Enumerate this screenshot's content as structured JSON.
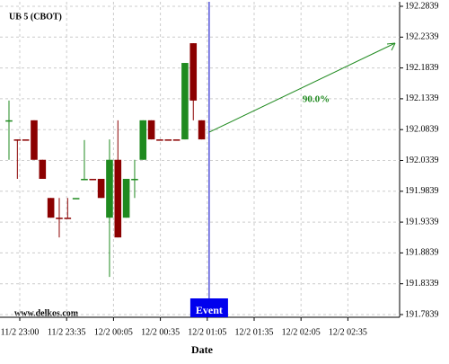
{
  "chart_data": {
    "type": "candlestick",
    "title": "UB 5 (CBOT)",
    "watermark": "www.delkos.com",
    "x_label": "Date",
    "x_labels": [
      "11/2 23:00",
      "11/2 23:35",
      "12/2 00:05",
      "12/2 00:35",
      "12/2 01:05",
      "12/2 01:35",
      "12/2 02:05",
      "12/2 02:35"
    ],
    "open": [
      192.097,
      192.068,
      192.068,
      192.099,
      192.035,
      191.973,
      191.941,
      191.941,
      191.973,
      192.004,
      192.004,
      192.004,
      191.941,
      192.035,
      191.941,
      192.004,
      192.035,
      192.099,
      192.068,
      192.068,
      192.068,
      192.068,
      192.224,
      192.099
    ],
    "high": [
      192.131,
      192.068,
      192.068,
      192.099,
      192.035,
      191.973,
      191.973,
      191.973,
      191.973,
      192.067,
      192.004,
      192.004,
      192.068,
      192.099,
      192.004,
      192.035,
      192.099,
      192.099,
      192.068,
      192.068,
      192.068,
      192.192,
      192.224,
      192.099
    ],
    "low": [
      192.035,
      192.004,
      192.068,
      192.035,
      192.004,
      191.941,
      191.909,
      191.941,
      191.973,
      192.004,
      192.004,
      191.973,
      191.845,
      191.909,
      191.941,
      191.973,
      192.035,
      192.068,
      192.068,
      192.068,
      192.068,
      192.068,
      192.099,
      192.068
    ],
    "close": [
      192.099,
      192.068,
      192.068,
      192.035,
      192.004,
      191.941,
      191.941,
      191.941,
      191.973,
      192.004,
      192.004,
      191.973,
      192.035,
      191.909,
      192.004,
      192.004,
      192.099,
      192.068,
      192.068,
      192.068,
      192.068,
      192.192,
      192.131,
      192.068
    ],
    "colors": [
      "#1f8a1f",
      "#8b0000",
      "#8b0000",
      "#8b0000",
      "#8b0000",
      "#8b0000",
      "#8b0000",
      "#8b0000",
      "#1f8a1f",
      "#1f8a1f",
      "#8b0000",
      "#8b0000",
      "#1f8a1f",
      "#8b0000",
      "#1f8a1f",
      "#1f8a1f",
      "#1f8a1f",
      "#8b0000",
      "#8b0000",
      "#8b0000",
      "#8b0000",
      "#1f8a1f",
      "#8b0000",
      "#8b0000"
    ],
    "event_label": "Event",
    "annotation": "90.0%",
    "ylim": [
      191.7839,
      192.2839
    ],
    "yticks": [
      191.7839,
      191.8339,
      191.8839,
      191.9339,
      191.9839,
      192.0339,
      192.0839,
      192.1339,
      192.1839,
      192.2339,
      192.2839
    ],
    "grid": true
  }
}
